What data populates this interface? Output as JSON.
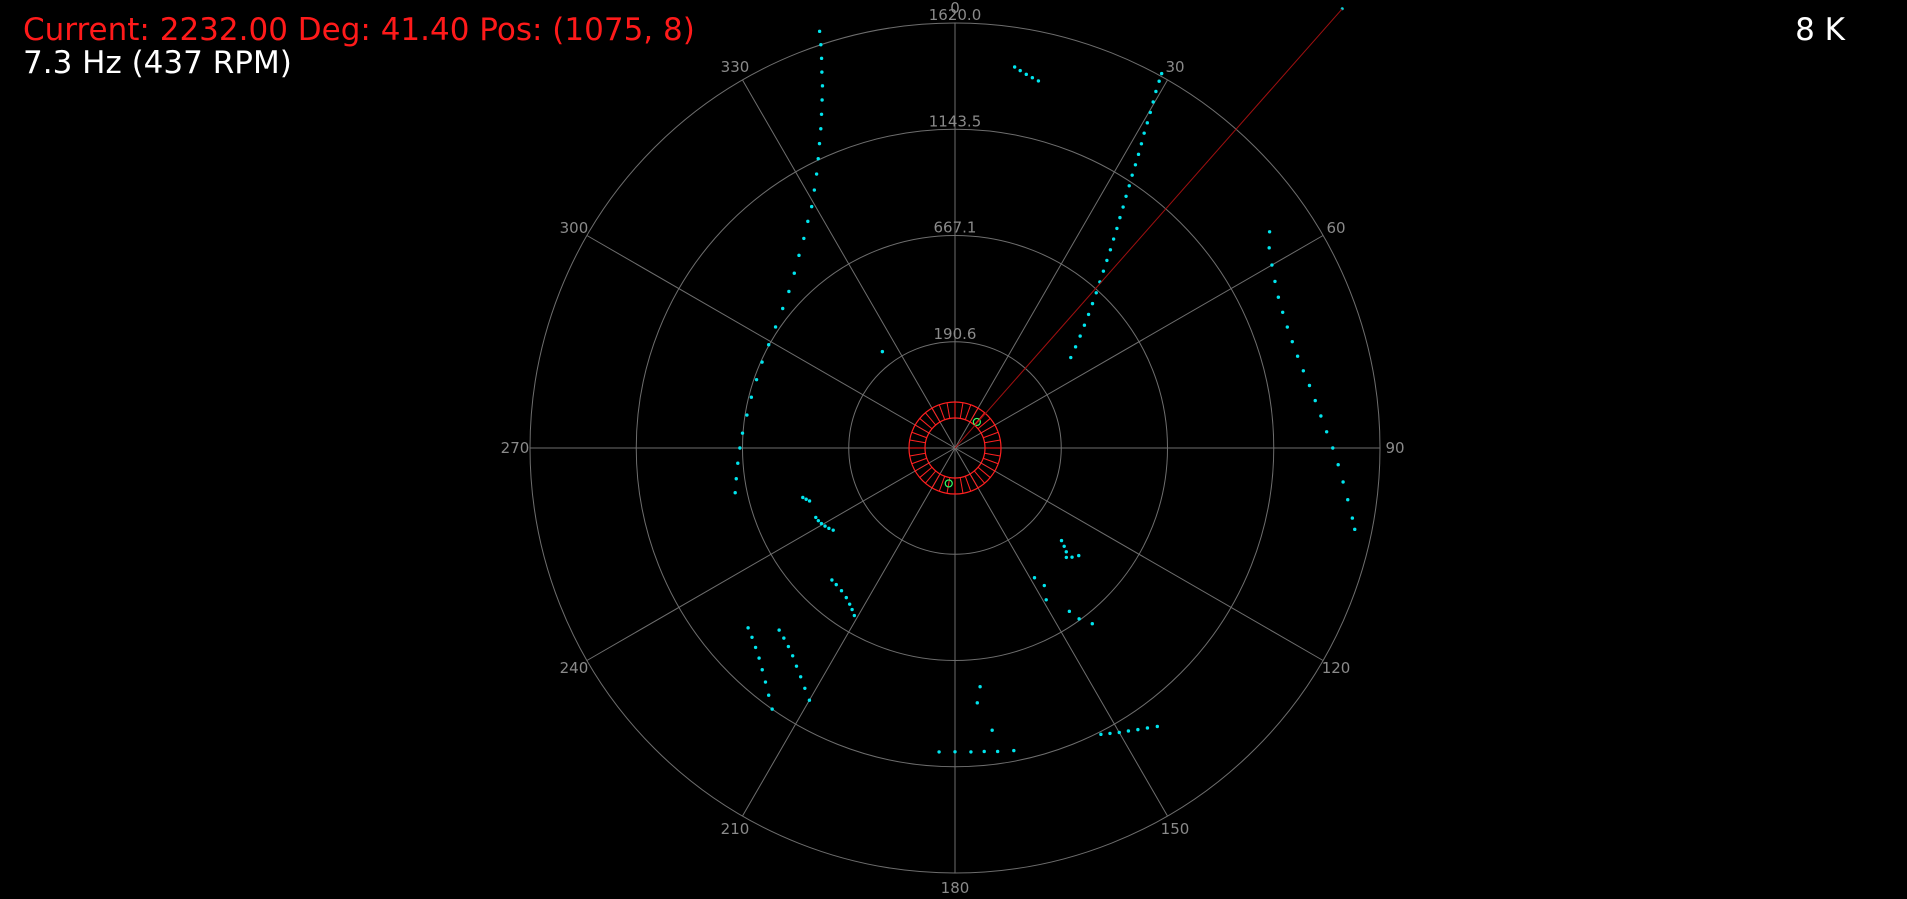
{
  "status": {
    "text": "Current: 2232.00 Deg: 41.40 Pos: (1075, 8)"
  },
  "frequency": {
    "text": "7.3 Hz (437 RPM)"
  },
  "point_count": {
    "text": "8 K"
  },
  "colors": {
    "background": "#000000",
    "status_text": "#ff1a1a",
    "info_text": "#ffffff",
    "grid": "#6e6e6e",
    "tick_text": "#8a8a8a",
    "points": "#00e5ee",
    "robot": "#ff2020",
    "robot_inner": "#33ff66",
    "cursor_line": "#a01010"
  },
  "chart_data": {
    "type": "scatter",
    "coordinate_system": "polar",
    "rotation": "clockwise",
    "zero_direction": "up",
    "radial_ticks": [
      "190.6",
      "667.1",
      "1143.5",
      "1620.0"
    ],
    "radial_values": [
      190.6,
      667.1,
      1143.5,
      1620.0
    ],
    "max_radius_value": 1620.0,
    "angle_ticks": [
      "0",
      "30",
      "60",
      "90",
      "120",
      "150",
      "180",
      "210",
      "240",
      "270",
      "300",
      "330"
    ],
    "cursor": {
      "angle_deg": 41.4,
      "distance": 2232.0
    },
    "series": [
      {
        "points": [
          [
            342.0,
            1670
          ],
          [
            341.6,
            1620
          ],
          [
            341.1,
            1570
          ],
          [
            340.5,
            1520
          ],
          [
            339.9,
            1470
          ],
          [
            339.1,
            1420
          ],
          [
            338.2,
            1370
          ],
          [
            337.2,
            1320
          ],
          [
            336.0,
            1270
          ],
          [
            334.7,
            1220
          ],
          [
            333.2,
            1170
          ],
          [
            331.4,
            1120
          ],
          [
            329.3,
            1070
          ],
          [
            327.0,
            1030
          ],
          [
            324.2,
            985
          ],
          [
            321.0,
            945
          ],
          [
            317.4,
            905
          ],
          [
            313.3,
            870
          ],
          [
            309.0,
            845
          ],
          [
            304.0,
            825
          ],
          [
            299.0,
            812
          ],
          [
            294.0,
            805
          ],
          [
            289.0,
            800
          ],
          [
            284.0,
            800
          ],
          [
            279.0,
            803
          ],
          [
            274.0,
            812
          ],
          [
            270.0,
            820
          ],
          [
            266.0,
            830
          ],
          [
            262.0,
            842
          ],
          [
            258.5,
            855
          ],
          [
            28.9,
            1630
          ],
          [
            29.1,
            1600
          ],
          [
            29.4,
            1560
          ],
          [
            29.8,
            1520
          ],
          [
            30.2,
            1480
          ],
          [
            30.6,
            1440
          ],
          [
            31.0,
            1400
          ],
          [
            31.5,
            1360
          ],
          [
            32.0,
            1320
          ],
          [
            32.5,
            1280
          ],
          [
            33.0,
            1240
          ],
          [
            33.6,
            1200
          ],
          [
            34.2,
            1160
          ],
          [
            34.9,
            1120
          ],
          [
            35.6,
            1080
          ],
          [
            36.4,
            1040
          ],
          [
            37.2,
            1000
          ],
          [
            38.1,
            960
          ],
          [
            39.0,
            920
          ],
          [
            40.0,
            880
          ],
          [
            41.1,
            840
          ],
          [
            42.3,
            800
          ],
          [
            43.6,
            760
          ],
          [
            45.0,
            720
          ],
          [
            46.5,
            680
          ],
          [
            48.2,
            640
          ],
          [
            50.0,
            600
          ],
          [
            52.0,
            560
          ],
          [
            55.5,
            1455
          ],
          [
            57.5,
            1420
          ],
          [
            60.0,
            1395
          ],
          [
            62.5,
            1375
          ],
          [
            65.0,
            1360
          ],
          [
            67.5,
            1352
          ],
          [
            70.0,
            1348
          ],
          [
            72.5,
            1348
          ],
          [
            75.0,
            1352
          ],
          [
            77.5,
            1360
          ],
          [
            80.0,
            1372
          ],
          [
            82.5,
            1385
          ],
          [
            85.0,
            1400
          ],
          [
            87.5,
            1418
          ],
          [
            90.0,
            1440
          ],
          [
            92.5,
            1462
          ],
          [
            95.0,
            1485
          ],
          [
            97.5,
            1510
          ],
          [
            100.0,
            1538
          ],
          [
            101.5,
            1555
          ],
          [
            8.9,
            1470
          ],
          [
            9.8,
            1460
          ],
          [
            10.8,
            1450
          ],
          [
            11.8,
            1442
          ],
          [
            12.8,
            1435
          ],
          [
            323.0,
            460
          ],
          [
            210.0,
            1110
          ],
          [
            212.0,
            1080
          ],
          [
            214.0,
            1052
          ],
          [
            216.0,
            1028
          ],
          [
            218.0,
            1005
          ],
          [
            220.0,
            988
          ],
          [
            222.0,
            975
          ],
          [
            224.0,
            965
          ],
          [
            215.0,
            1215
          ],
          [
            217.0,
            1180
          ],
          [
            219.0,
            1148
          ],
          [
            221.0,
            1120
          ],
          [
            223.0,
            1095
          ],
          [
            225.0,
            1075
          ],
          [
            227.0,
            1058
          ],
          [
            229.0,
            1045
          ],
          [
            183.0,
            1160
          ],
          [
            180.0,
            1158
          ],
          [
            177.0,
            1160
          ],
          [
            174.5,
            1162
          ],
          [
            172.0,
            1168
          ],
          [
            169.0,
            1175
          ],
          [
            153.0,
            1225
          ],
          [
            151.5,
            1238
          ],
          [
            150.0,
            1252
          ],
          [
            148.5,
            1265
          ],
          [
            147.0,
            1280
          ],
          [
            145.5,
            1295
          ],
          [
            144.0,
            1312
          ],
          [
            175.0,
            975
          ],
          [
            174.0,
            915
          ],
          [
            172.5,
            1085
          ],
          [
            149.0,
            675
          ],
          [
            147.0,
            625
          ],
          [
            148.5,
            580
          ],
          [
            145.0,
            760
          ],
          [
            144.0,
            805
          ],
          [
            142.0,
            850
          ],
          [
            131.0,
            538
          ],
          [
            132.0,
            560
          ],
          [
            133.0,
            580
          ],
          [
            134.5,
            595
          ],
          [
            133.0,
            610
          ],
          [
            131.0,
            625
          ],
          [
            211.0,
            745
          ],
          [
            212.5,
            730
          ],
          [
            214.0,
            718
          ],
          [
            216.0,
            705
          ],
          [
            218.5,
            695
          ],
          [
            221.0,
            690
          ],
          [
            223.0,
            688
          ],
          [
            236.0,
            560
          ],
          [
            237.5,
            570
          ],
          [
            239.0,
            578
          ],
          [
            240.5,
            585
          ],
          [
            242.0,
            590
          ],
          [
            243.5,
            593
          ],
          [
            250.0,
            590
          ],
          [
            251.0,
            600
          ],
          [
            252.0,
            610
          ]
        ]
      }
    ]
  }
}
